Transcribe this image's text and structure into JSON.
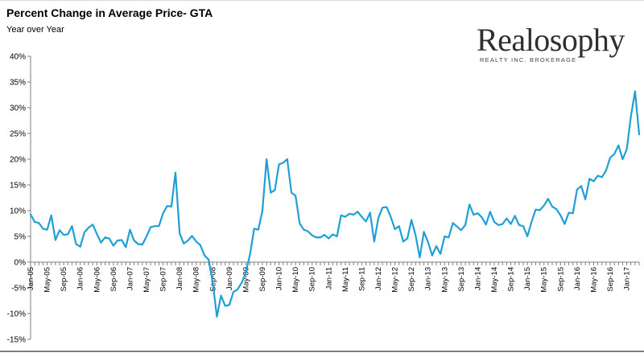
{
  "header": {
    "title": "Percent Change in Average Price- GTA",
    "subtitle": "Year over Year"
  },
  "logo": {
    "name": "Realosophy",
    "tagline": "REALTY INC. BROKERAGE"
  },
  "colors": {
    "line": "#1f9fd5",
    "axis": "#7f7f7f",
    "gridline": "#bfbfbf"
  },
  "chart_data": {
    "type": "line",
    "title": "Percent Change in Average Price- GTA",
    "subtitle": "Year over Year",
    "xlabel": "",
    "ylabel": "",
    "ylim": [
      -15,
      40
    ],
    "y_ticks": [
      40,
      35,
      30,
      25,
      20,
      15,
      10,
      5,
      0,
      -5,
      -10,
      -15
    ],
    "y_tick_labels": [
      "40%",
      "35%",
      "30%",
      "25%",
      "20%",
      "15%",
      "10%",
      "5%",
      "0%",
      "-5%",
      "-10%",
      "-15%"
    ],
    "x_start": "Jan-05",
    "x_tick_labels": [
      "Jan-05",
      "May-05",
      "Sep-05",
      "Jan-06",
      "May-06",
      "Sep-06",
      "Jan-07",
      "May-07",
      "Sep-07",
      "Jan-08",
      "May-08",
      "Sep-08",
      "Jan-09",
      "May-09",
      "Sep-09",
      "Jan-10",
      "May-10",
      "Sep-10",
      "Jan-11",
      "May-11",
      "Sep-11",
      "Jan-12",
      "May-12",
      "Sep-12",
      "Jan-13",
      "May-13",
      "Sep-13",
      "Jan-14",
      "May-14",
      "Sep-14",
      "Jan-15",
      "May-15",
      "Sep-15",
      "Jan-16",
      "May-16",
      "Sep-16",
      "Jan-17"
    ],
    "series": [
      {
        "name": "Percent Change in Average Price",
        "values": [
          9.3,
          7.8,
          7.6,
          6.5,
          6.3,
          9.1,
          4.3,
          6.2,
          5.3,
          5.4,
          7.0,
          3.5,
          3.0,
          5.8,
          6.7,
          7.3,
          5.5,
          3.8,
          4.8,
          4.6,
          3.2,
          4.2,
          4.3,
          2.9,
          6.3,
          4.2,
          3.5,
          3.4,
          5.0,
          6.8,
          7.0,
          7.0,
          9.5,
          10.9,
          10.8,
          17.4,
          5.6,
          3.6,
          4.2,
          5.1,
          4.0,
          3.3,
          1.3,
          0.5,
          -4.0,
          -10.6,
          -6.5,
          -8.5,
          -8.3,
          -5.8,
          -5.3,
          -4.0,
          -2.0,
          1.5,
          6.5,
          6.3,
          10.0,
          20.0,
          13.5,
          14.0,
          19.0,
          19.3,
          20.0,
          13.5,
          12.9,
          7.5,
          6.3,
          6.0,
          5.2,
          4.8,
          4.8,
          5.3,
          4.6,
          5.4,
          5.0,
          9.1,
          8.8,
          9.4,
          9.2,
          9.8,
          8.8,
          7.9,
          9.6,
          4.0,
          8.6,
          10.6,
          10.7,
          8.8,
          6.4,
          7.0,
          4.0,
          4.6,
          8.2,
          5.2,
          0.9,
          5.9,
          3.9,
          1.3,
          3.1,
          1.6,
          5.0,
          4.8,
          7.6,
          6.9,
          6.2,
          7.2,
          11.2,
          9.2,
          9.5,
          8.7,
          7.3,
          9.8,
          7.8,
          7.2,
          7.4,
          8.5,
          7.4,
          9.0,
          7.2,
          7.0,
          5.0,
          7.8,
          10.2,
          10.1,
          11.0,
          12.3,
          10.8,
          10.3,
          9.1,
          7.4,
          9.6,
          9.5,
          14.1,
          14.8,
          12.2,
          16.2,
          15.7,
          16.8,
          16.5,
          17.8,
          20.3,
          21.0,
          22.7,
          20.0,
          21.9,
          28.3,
          33.2,
          24.8
        ]
      }
    ]
  }
}
